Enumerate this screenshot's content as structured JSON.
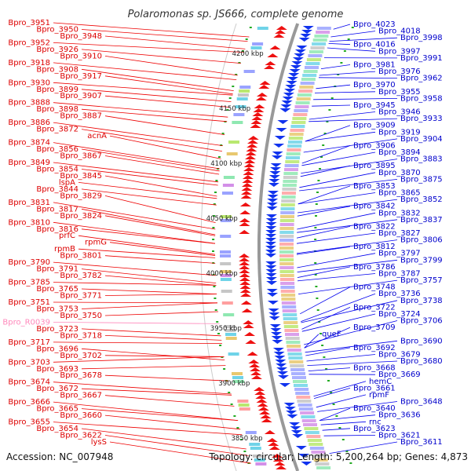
{
  "title": "Polaromonas sp. JS666, complete genome",
  "accession": "Accession: NC_007948",
  "topology": "Topology: circular; Length: 5,200,264 bp; Genes: 4,873",
  "colors": {
    "left_label": "#dd0000",
    "left_pink": "#ff88bb",
    "right_label": "#0000cc",
    "left_line": "#ee0000",
    "right_line": "#0000ee",
    "ring": "#999999",
    "tick": "#22aa22"
  },
  "kbp_marks": [
    {
      "label": "4200 kbp",
      "kbp": 4200
    },
    {
      "label": "4150 kbp",
      "kbp": 4150
    },
    {
      "label": "4100 kbp",
      "kbp": 4100
    },
    {
      "label": "4050 kbp",
      "kbp": 4050
    },
    {
      "label": "4000 kbp",
      "kbp": 4000
    },
    {
      "label": "3950 kbp",
      "kbp": 3950
    },
    {
      "label": "3900 kbp",
      "kbp": 3900
    },
    {
      "label": "3850 kbp",
      "kbp": 3850
    }
  ],
  "left_labels": [
    {
      "text": "Bpro_3951",
      "kbp": 4215
    },
    {
      "text": "Bpro_3950",
      "kbp": 4211
    },
    {
      "text": "Bpro_3948",
      "kbp": 4204
    },
    {
      "text": "Bpro_3952",
      "kbp": 4201
    },
    {
      "text": "Bpro_3926",
      "kbp": 4191
    },
    {
      "text": "Bpro_3910",
      "kbp": 4180
    },
    {
      "text": "Bpro_3918",
      "kbp": 4176
    },
    {
      "text": "Bpro_3908",
      "kbp": 4166
    },
    {
      "text": "Bpro_3917",
      "kbp": 4163
    },
    {
      "text": "Bpro_3930",
      "kbp": 4162
    },
    {
      "text": "Bpro_3899",
      "kbp": 4156
    },
    {
      "text": "Bpro_3907",
      "kbp": 4151
    },
    {
      "text": "Bpro_3888",
      "kbp": 4142
    },
    {
      "text": "Bpro_3898",
      "kbp": 4138
    },
    {
      "text": "Bpro_3887",
      "kbp": 4126
    },
    {
      "text": "Bpro_3886",
      "kbp": 4116
    },
    {
      "text": "Bpro_3872",
      "kbp": 4111
    },
    {
      "text": "acnA",
      "kbp": 4104
    },
    {
      "text": "Bpro_3874",
      "kbp": 4095
    },
    {
      "text": "Bpro_3856",
      "kbp": 4093
    },
    {
      "text": "Bpro_3867",
      "kbp": 4090
    },
    {
      "text": "Bpro_3849",
      "kbp": 4083
    },
    {
      "text": "Bpro_3854",
      "kbp": 4080
    },
    {
      "text": "Bpro_3845",
      "kbp": 4070
    },
    {
      "text": "lspA",
      "kbp": 4068
    },
    {
      "text": "Bpro_3844",
      "kbp": 4062
    },
    {
      "text": "Bpro_3829",
      "kbp": 4046
    },
    {
      "text": "Bpro_3831",
      "kbp": 4040
    },
    {
      "text": "Bpro_3817",
      "kbp": 4035
    },
    {
      "text": "Bpro_3824",
      "kbp": 4034
    },
    {
      "text": "Bpro_3810",
      "kbp": 4027
    },
    {
      "text": "Bpro_3816",
      "kbp": 4027
    },
    {
      "text": "prfC",
      "kbp": 4017
    },
    {
      "text": "rpmG",
      "kbp": 4016
    },
    {
      "text": "rpmB",
      "kbp": 4014
    },
    {
      "text": "Bpro_3801",
      "kbp": 4009
    },
    {
      "text": "Bpro_3790",
      "kbp": 3998
    },
    {
      "text": "Bpro_3791",
      "kbp": 3991
    },
    {
      "text": "Bpro_3782",
      "kbp": 3989
    },
    {
      "text": "Bpro_3785",
      "kbp": 3989
    },
    {
      "text": "Bpro_3765",
      "kbp": 3981
    },
    {
      "text": "Bpro_3771",
      "kbp": 3981
    },
    {
      "text": "Bpro_3751",
      "kbp": 3973
    },
    {
      "text": "Bpro_3753",
      "kbp": 3973
    },
    {
      "text": "Bpro_3750",
      "kbp": 3965
    },
    {
      "text": "Bpro_R0039",
      "kbp": 3954,
      "pink": true
    },
    {
      "text": "Bpro_3723",
      "kbp": 3943
    },
    {
      "text": "Bpro_3718",
      "kbp": 3939
    },
    {
      "text": "Bpro_3717",
      "kbp": 3936
    },
    {
      "text": "Bpro_3696",
      "kbp": 3921
    },
    {
      "text": "Bpro_3702",
      "kbp": 3924
    },
    {
      "text": "Bpro_3703",
      "kbp": 3924
    },
    {
      "text": "Bpro_3693",
      "kbp": 3916
    },
    {
      "text": "Bpro_3678",
      "kbp": 3902
    },
    {
      "text": "Bpro_3674",
      "kbp": 3890
    },
    {
      "text": "Bpro_3672",
      "kbp": 3889
    },
    {
      "text": "Bpro_3667",
      "kbp": 3879
    },
    {
      "text": "Bpro_3666",
      "kbp": 3866
    },
    {
      "text": "Bpro_3665",
      "kbp": 3866
    },
    {
      "text": "Bpro_3660",
      "kbp": 3858
    },
    {
      "text": "Bpro_3655",
      "kbp": 3853
    },
    {
      "text": "Bpro_3654",
      "kbp": 3840
    },
    {
      "text": "Bpro_3622",
      "kbp": 3834
    },
    {
      "text": "lysS",
      "kbp": 3827
    }
  ],
  "right_labels": [
    {
      "text": "Bpro_4023",
      "kbp": 4222
    },
    {
      "text": "Bpro_4018",
      "kbp": 4215
    },
    {
      "text": "Bpro_3998",
      "kbp": 4211
    },
    {
      "text": "Bpro_4016",
      "kbp": 4209
    },
    {
      "text": "Bpro_3997",
      "kbp": 4205
    },
    {
      "text": "Bpro_3991",
      "kbp": 4196
    },
    {
      "text": "Bpro_3981",
      "kbp": 4186
    },
    {
      "text": "Bpro_3976",
      "kbp": 4180
    },
    {
      "text": "Bpro_3962",
      "kbp": 4178
    },
    {
      "text": "Bpro_3970",
      "kbp": 4168
    },
    {
      "text": "Bpro_3955",
      "kbp": 4164
    },
    {
      "text": "Bpro_3958",
      "kbp": 4158
    },
    {
      "text": "Bpro_3945",
      "kbp": 4152
    },
    {
      "text": "Bpro_3946",
      "kbp": 4140
    },
    {
      "text": "Bpro_3933",
      "kbp": 4138
    },
    {
      "text": "Bpro_3909",
      "kbp": 4120
    },
    {
      "text": "Bpro_3919",
      "kbp": 4120
    },
    {
      "text": "Bpro_3904",
      "kbp": 4110
    },
    {
      "text": "Bpro_3906",
      "kbp": 4100
    },
    {
      "text": "Bpro_3894",
      "kbp": 4098
    },
    {
      "text": "Bpro_3883",
      "kbp": 4091
    },
    {
      "text": "Bpro_3895",
      "kbp": 4088
    },
    {
      "text": "Bpro_3870",
      "kbp": 4078
    },
    {
      "text": "Bpro_3875",
      "kbp": 4075
    },
    {
      "text": "Bpro_3853",
      "kbp": 4063
    },
    {
      "text": "Bpro_3865",
      "kbp": 4063
    },
    {
      "text": "Bpro_3852",
      "kbp": 4055
    },
    {
      "text": "Bpro_3842",
      "kbp": 4052
    },
    {
      "text": "Bpro_3832",
      "kbp": 4040
    },
    {
      "text": "Bpro_3837",
      "kbp": 4037
    },
    {
      "text": "Bpro_3822",
      "kbp": 4032
    },
    {
      "text": "Bpro_3827",
      "kbp": 4027
    },
    {
      "text": "Bpro_3806",
      "kbp": 4018
    },
    {
      "text": "Bpro_3812",
      "kbp": 4017
    },
    {
      "text": "Bpro_3797",
      "kbp": 4005
    },
    {
      "text": "Bpro_3799",
      "kbp": 4001
    },
    {
      "text": "Bpro_3786",
      "kbp": 3996
    },
    {
      "text": "Bpro_3787",
      "kbp": 3993
    },
    {
      "text": "Bpro_3757",
      "kbp": 3981
    },
    {
      "text": "Bpro_3748",
      "kbp": 3963
    },
    {
      "text": "Bpro_3736",
      "kbp": 3956
    },
    {
      "text": "Bpro_3738",
      "kbp": 3955
    },
    {
      "text": "Bpro_3722",
      "kbp": 3949
    },
    {
      "text": "Bpro_3724",
      "kbp": 3947
    },
    {
      "text": "Bpro_3706",
      "kbp": 3935
    },
    {
      "text": "Bpro_3709",
      "kbp": 3932
    },
    {
      "text": "queF",
      "kbp": 3932
    },
    {
      "text": "Bpro_3690",
      "kbp": 3928
    },
    {
      "text": "Bpro_3692",
      "kbp": 3925
    },
    {
      "text": "Bpro_3679",
      "kbp": 3920
    },
    {
      "text": "Bpro_3680",
      "kbp": 3916
    },
    {
      "text": "Bpro_3668",
      "kbp": 3911
    },
    {
      "text": "Bpro_3669",
      "kbp": 3908
    },
    {
      "text": "hemC",
      "kbp": 3888
    },
    {
      "text": "Bpro_3661",
      "kbp": 3886
    },
    {
      "text": "rpmF",
      "kbp": 3878
    },
    {
      "text": "Bpro_3648",
      "kbp": 3874
    },
    {
      "text": "Bpro_3640",
      "kbp": 3866
    },
    {
      "text": "Bpro_3636",
      "kbp": 3866
    },
    {
      "text": "rnc",
      "kbp": 3862
    },
    {
      "text": "Bpro_3623",
      "kbp": 3857
    },
    {
      "text": "Bpro_3621",
      "kbp": 3852
    },
    {
      "text": "Bpro_3611",
      "kbp": 3836
    }
  ]
}
